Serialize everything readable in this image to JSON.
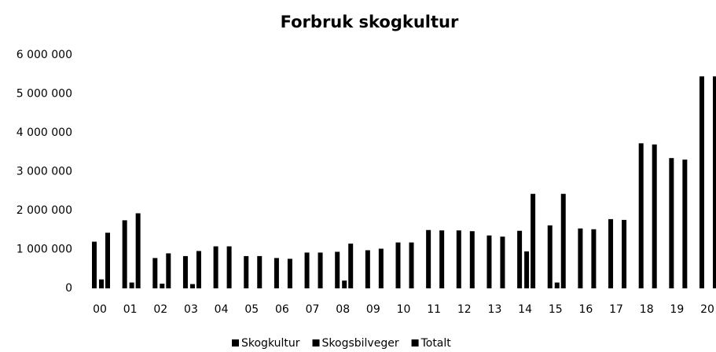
{
  "chart_data": {
    "type": "bar",
    "title": "Forbruk skogkultur",
    "categories": [
      "00",
      "01",
      "02",
      "03",
      "04",
      "05",
      "06",
      "07",
      "08",
      "09",
      "10",
      "11",
      "12",
      "13",
      "14",
      "15",
      "16",
      "17",
      "18",
      "19",
      "20"
    ],
    "series": [
      {
        "name": "Skogkultur",
        "color": "#000000",
        "values": [
          1200000,
          1750000,
          780000,
          830000,
          1080000,
          830000,
          780000,
          920000,
          940000,
          980000,
          1180000,
          1500000,
          1490000,
          1360000,
          1480000,
          1620000,
          1540000,
          1780000,
          3730000,
          3350000,
          5450000
        ]
      },
      {
        "name": "Skogsbilveger",
        "color": "#000000",
        "values": [
          230000,
          150000,
          120000,
          110000,
          0,
          0,
          0,
          0,
          200000,
          0,
          0,
          0,
          0,
          0,
          950000,
          150000,
          0,
          0,
          0,
          0,
          0
        ]
      },
      {
        "name": "Totalt",
        "color": "#000000",
        "values": [
          1430000,
          1930000,
          900000,
          960000,
          1080000,
          830000,
          760000,
          920000,
          1150000,
          1020000,
          1180000,
          1490000,
          1470000,
          1330000,
          2430000,
          2430000,
          1520000,
          1760000,
          3700000,
          3310000,
          5450000
        ]
      }
    ],
    "ylim": [
      0,
      6000000
    ],
    "yticks": [
      0,
      {
        "value": 1000000,
        "label": "1 000 000"
      },
      {
        "value": 2000000,
        "label": "2 000 000"
      },
      {
        "value": 3000000,
        "label": "3 000 000"
      },
      {
        "value": 4000000,
        "label": "4 000 000"
      },
      {
        "value": 5000000,
        "label": "5 000 000"
      },
      {
        "value": 6000000,
        "label": "6 000 000"
      }
    ],
    "grid": false,
    "legend": "bottom"
  }
}
